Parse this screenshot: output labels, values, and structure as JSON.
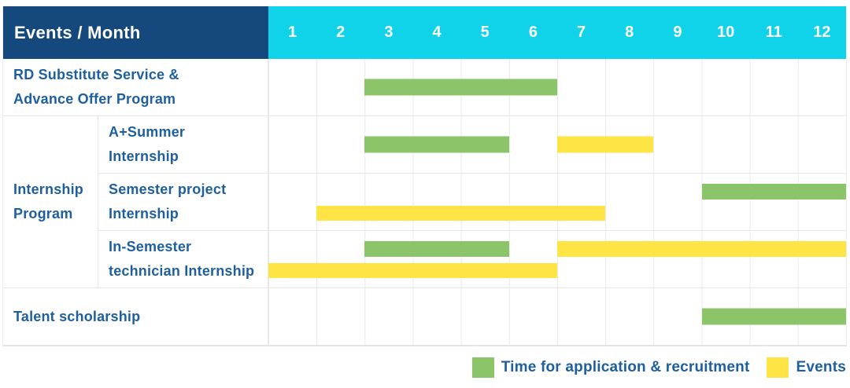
{
  "colors": {
    "header_bg": "#15497e",
    "months_bg": "#10d2e8",
    "label_text": "#1e5f9f",
    "green": "#8cc46a",
    "yellow": "#fee445",
    "grid": "#e9e9e9"
  },
  "header": {
    "title": "Events / Month",
    "months": [
      "1",
      "2",
      "3",
      "4",
      "5",
      "6",
      "7",
      "8",
      "9",
      "10",
      "11",
      "12"
    ]
  },
  "group_label": "Internship\nProgram",
  "rows": [
    {
      "label": "RD Substitute Service &\nAdvance Offer Program",
      "group": null,
      "bars": [
        {
          "type": "application",
          "start": 3,
          "end": 6,
          "line": "single"
        }
      ]
    },
    {
      "label": "A+Summer\nInternship",
      "group": "Internship Program",
      "bars": [
        {
          "type": "application",
          "start": 3,
          "end": 5,
          "line": "single"
        },
        {
          "type": "events",
          "start": 7,
          "end": 8,
          "line": "single"
        }
      ]
    },
    {
      "label": "Semester project\nInternship",
      "group": "Internship Program",
      "bars": [
        {
          "type": "application",
          "start": 10,
          "end": 12,
          "line": "top"
        },
        {
          "type": "events",
          "start": 2,
          "end": 7,
          "line": "bottom"
        }
      ]
    },
    {
      "label": "In-Semester\ntechnician Internship",
      "group": "Internship Program",
      "bars": [
        {
          "type": "application",
          "start": 3,
          "end": 5,
          "line": "top"
        },
        {
          "type": "events",
          "start": 7,
          "end": 12,
          "line": "top"
        },
        {
          "type": "events",
          "start": 1,
          "end": 6,
          "line": "bottom"
        }
      ]
    },
    {
      "label": "Talent scholarship",
      "group": null,
      "bars": [
        {
          "type": "application",
          "start": 10,
          "end": 12,
          "line": "single"
        }
      ]
    }
  ],
  "legend": [
    {
      "key": "application",
      "label": "Time for application & recruitment",
      "color": "#8cc46a"
    },
    {
      "key": "events",
      "label": "Events",
      "color": "#fee445"
    }
  ],
  "chart_data": {
    "type": "bar",
    "subtype": "gantt",
    "title": "Events / Month",
    "xlabel": "Month",
    "x_ticks": [
      1,
      2,
      3,
      4,
      5,
      6,
      7,
      8,
      9,
      10,
      11,
      12
    ],
    "x_range": [
      1,
      12
    ],
    "grid": true,
    "legend_position": "bottom-right",
    "row_labels": [
      "RD Substitute Service & Advance Offer Program",
      "Internship Program / A+Summer Internship",
      "Internship Program / Semester project Internship",
      "Internship Program / In-Semester technician Internship",
      "Talent scholarship"
    ],
    "series": [
      {
        "name": "Time for application & recruitment",
        "color": "#8cc46a",
        "spans": [
          {
            "row": "RD Substitute Service & Advance Offer Program",
            "start_month": 3,
            "end_month": 6
          },
          {
            "row": "A+Summer Internship",
            "start_month": 3,
            "end_month": 5
          },
          {
            "row": "Semester project Internship",
            "start_month": 10,
            "end_month": 12
          },
          {
            "row": "In-Semester technician Internship",
            "start_month": 3,
            "end_month": 5
          },
          {
            "row": "Talent scholarship",
            "start_month": 10,
            "end_month": 12
          }
        ]
      },
      {
        "name": "Events",
        "color": "#fee445",
        "spans": [
          {
            "row": "A+Summer Internship",
            "start_month": 7,
            "end_month": 8
          },
          {
            "row": "Semester project Internship",
            "start_month": 2,
            "end_month": 7
          },
          {
            "row": "In-Semester technician Internship",
            "start_month": 7,
            "end_month": 12
          },
          {
            "row": "In-Semester technician Internship",
            "start_month": 1,
            "end_month": 6
          }
        ]
      }
    ]
  }
}
